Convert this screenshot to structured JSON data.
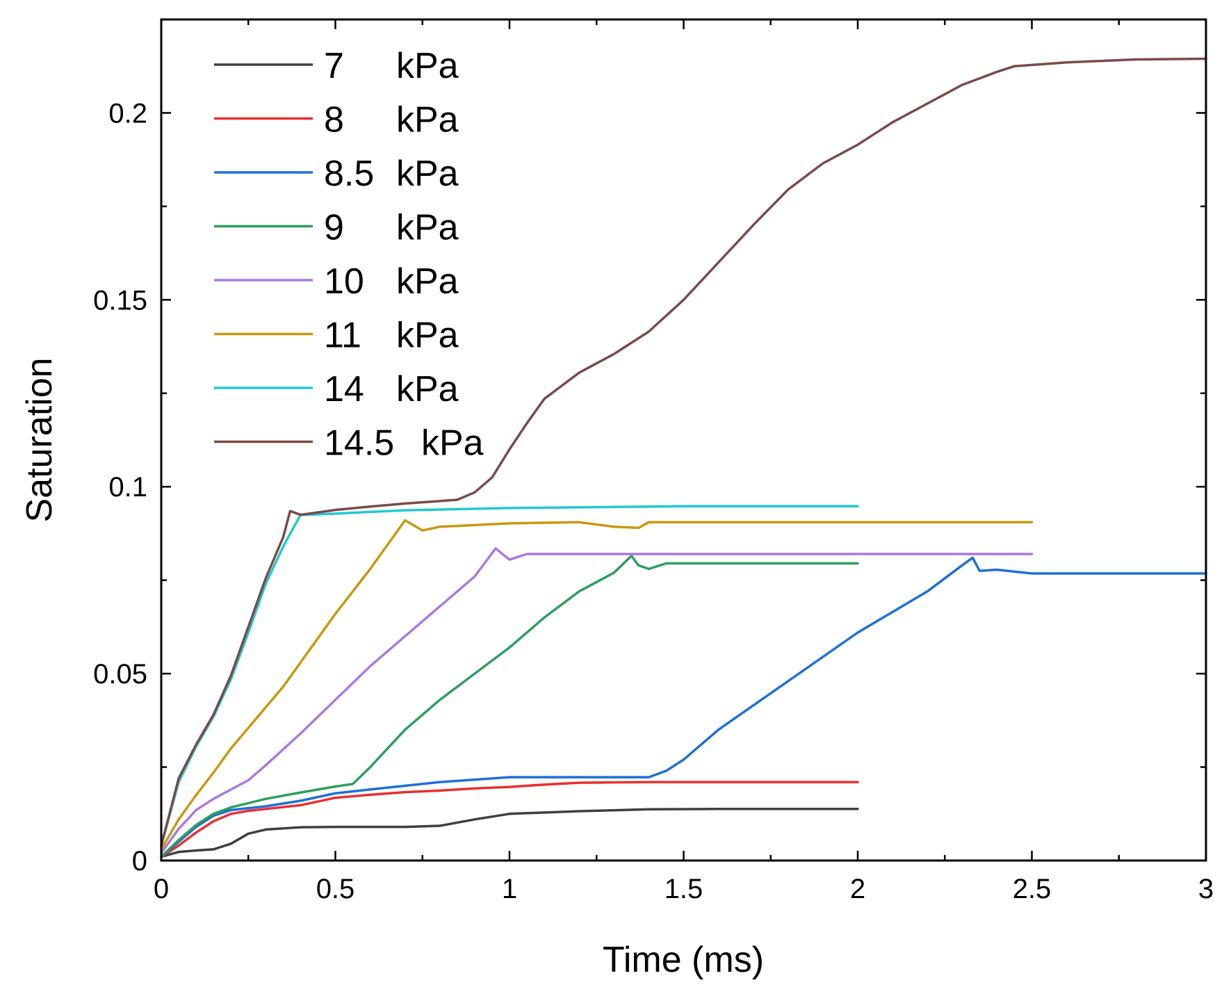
{
  "chart_data": {
    "type": "line",
    "title": "",
    "xlabel": "Time (ms)",
    "ylabel": "Saturation",
    "xlim": [
      0,
      3
    ],
    "ylim": [
      0,
      0.225
    ],
    "grid": false,
    "legend_position": "top-left",
    "x_ticks": [
      {
        "value": 0,
        "label": "0"
      },
      {
        "value": 0.5,
        "label": "0.5"
      },
      {
        "value": 1,
        "label": "1"
      },
      {
        "value": 1.5,
        "label": "1.5"
      },
      {
        "value": 2,
        "label": "2"
      },
      {
        "value": 2.5,
        "label": "2.5"
      },
      {
        "value": 3,
        "label": "3"
      }
    ],
    "y_ticks": [
      {
        "value": 0,
        "label": "0"
      },
      {
        "value": 0.05,
        "label": "0.05"
      },
      {
        "value": 0.1,
        "label": "0.1"
      },
      {
        "value": 0.15,
        "label": "0.15"
      },
      {
        "value": 0.2,
        "label": "0.2"
      }
    ],
    "series": [
      {
        "name": "7 kPa",
        "label_value": "7",
        "label_unit": "kPa",
        "color": "#3f3f3f",
        "x": [
          0,
          0.05,
          0.1,
          0.15,
          0.2,
          0.25,
          0.3,
          0.4,
          0.5,
          0.6,
          0.7,
          0.8,
          0.9,
          1.0,
          1.2,
          1.4,
          1.6,
          1.8,
          2.0
        ],
        "y": [
          0.001,
          0.0023,
          0.0027,
          0.003,
          0.0045,
          0.0072,
          0.0083,
          0.0089,
          0.009,
          0.009,
          0.009,
          0.0093,
          0.011,
          0.0125,
          0.0132,
          0.0137,
          0.0138,
          0.0138,
          0.0138
        ]
      },
      {
        "name": "8 kPa",
        "label_value": "8",
        "label_unit": "kPa",
        "color": "#e8302f",
        "x": [
          0,
          0.05,
          0.1,
          0.15,
          0.2,
          0.25,
          0.3,
          0.4,
          0.5,
          0.6,
          0.7,
          0.8,
          0.9,
          1.0,
          1.1,
          1.2,
          1.4,
          1.6,
          1.8,
          2.0
        ],
        "y": [
          0.001,
          0.004,
          0.0075,
          0.0105,
          0.0125,
          0.0133,
          0.0138,
          0.0148,
          0.0168,
          0.0176,
          0.0183,
          0.0187,
          0.0193,
          0.0197,
          0.0203,
          0.0208,
          0.021,
          0.021,
          0.021,
          0.021
        ]
      },
      {
        "name": "8.5 kPa",
        "label_value": "8.5",
        "label_unit": "kPa",
        "color": "#1f6fd6",
        "x": [
          0,
          0.05,
          0.1,
          0.15,
          0.2,
          0.3,
          0.4,
          0.5,
          0.6,
          0.8,
          1.0,
          1.2,
          1.4,
          1.45,
          1.5,
          1.6,
          1.8,
          2.0,
          2.2,
          2.3,
          2.33,
          2.35,
          2.4,
          2.5,
          2.6,
          2.8,
          3.0
        ],
        "y": [
          0.001,
          0.005,
          0.009,
          0.012,
          0.0135,
          0.0145,
          0.016,
          0.018,
          0.019,
          0.021,
          0.0223,
          0.0223,
          0.0223,
          0.024,
          0.027,
          0.035,
          0.048,
          0.061,
          0.072,
          0.079,
          0.081,
          0.0775,
          0.0778,
          0.0768,
          0.0768,
          0.0768,
          0.0768
        ]
      },
      {
        "name": "9 kPa",
        "label_value": "9",
        "label_unit": "kPa",
        "color": "#2e9e5e",
        "x": [
          0,
          0.05,
          0.1,
          0.15,
          0.2,
          0.3,
          0.4,
          0.5,
          0.55,
          0.6,
          0.7,
          0.8,
          0.9,
          1.0,
          1.1,
          1.2,
          1.3,
          1.35,
          1.37,
          1.4,
          1.45,
          1.6,
          1.8,
          2.0
        ],
        "y": [
          0.001,
          0.0055,
          0.0095,
          0.0125,
          0.0142,
          0.0165,
          0.0182,
          0.0198,
          0.0205,
          0.025,
          0.035,
          0.043,
          0.05,
          0.057,
          0.065,
          0.072,
          0.077,
          0.0815,
          0.079,
          0.078,
          0.0795,
          0.0795,
          0.0795,
          0.0795
        ]
      },
      {
        "name": "10 kPa",
        "label_value": "10",
        "label_unit": "kPa",
        "color": "#a97ae0",
        "x": [
          0,
          0.05,
          0.1,
          0.15,
          0.2,
          0.25,
          0.3,
          0.4,
          0.5,
          0.6,
          0.7,
          0.8,
          0.9,
          0.96,
          1.0,
          1.05,
          1.2,
          1.5,
          2.0,
          2.5
        ],
        "y": [
          0.002,
          0.0085,
          0.0135,
          0.0165,
          0.019,
          0.0215,
          0.0255,
          0.034,
          0.043,
          0.052,
          0.06,
          0.068,
          0.076,
          0.0835,
          0.0805,
          0.082,
          0.082,
          0.082,
          0.082,
          0.082
        ]
      },
      {
        "name": "11 kPa",
        "label_value": "11",
        "label_unit": "kPa",
        "color": "#c8980e",
        "x": [
          0,
          0.05,
          0.1,
          0.15,
          0.2,
          0.25,
          0.3,
          0.35,
          0.4,
          0.5,
          0.6,
          0.7,
          0.75,
          0.8,
          1.0,
          1.2,
          1.3,
          1.37,
          1.4,
          1.6,
          2.0,
          2.5
        ],
        "y": [
          0.003,
          0.011,
          0.0175,
          0.0235,
          0.03,
          0.0355,
          0.041,
          0.0465,
          0.053,
          0.066,
          0.078,
          0.091,
          0.0883,
          0.0893,
          0.0902,
          0.0905,
          0.0893,
          0.089,
          0.0905,
          0.0905,
          0.0905,
          0.0905
        ]
      },
      {
        "name": "14 kPa",
        "label_value": "14",
        "label_unit": "kPa",
        "color": "#1fcad0",
        "x": [
          0,
          0.05,
          0.1,
          0.15,
          0.2,
          0.25,
          0.3,
          0.35,
          0.4,
          0.42,
          0.5,
          0.7,
          1.0,
          1.5,
          2.0
        ],
        "y": [
          0.004,
          0.021,
          0.0305,
          0.0385,
          0.0485,
          0.061,
          0.074,
          0.084,
          0.0925,
          0.0925,
          0.0928,
          0.0937,
          0.0943,
          0.0948,
          0.0948
        ]
      },
      {
        "name": "14.5 kPa",
        "label_value": "14.5",
        "label_unit": "kPa",
        "color": "#7a4a4a",
        "x": [
          0,
          0.05,
          0.1,
          0.15,
          0.2,
          0.25,
          0.3,
          0.35,
          0.37,
          0.4,
          0.5,
          0.6,
          0.7,
          0.85,
          0.9,
          0.95,
          1.0,
          1.05,
          1.1,
          1.15,
          1.2,
          1.3,
          1.4,
          1.5,
          1.6,
          1.7,
          1.8,
          1.9,
          2.0,
          2.1,
          2.2,
          2.3,
          2.4,
          2.45,
          2.6,
          2.8,
          3.0
        ],
        "y": [
          0.004,
          0.022,
          0.031,
          0.039,
          0.0495,
          0.0625,
          0.0755,
          0.0865,
          0.0935,
          0.0925,
          0.0938,
          0.0947,
          0.0955,
          0.0965,
          0.0985,
          0.1025,
          0.11,
          0.117,
          0.1235,
          0.127,
          0.1305,
          0.1355,
          0.1415,
          0.15,
          0.16,
          0.17,
          0.1795,
          0.1865,
          0.1915,
          0.1975,
          0.2025,
          0.2075,
          0.211,
          0.2125,
          0.2135,
          0.2143,
          0.2145
        ]
      }
    ]
  }
}
